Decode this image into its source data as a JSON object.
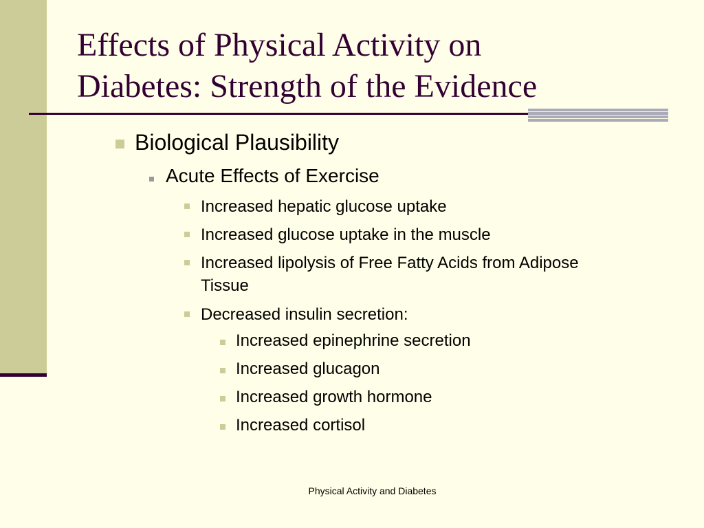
{
  "slide": {
    "title_line1": "Effects of Physical Activity on",
    "title_line2": "Diabetes: Strength of the Evidence",
    "bullets": {
      "l1": "Biological Plausibility",
      "l2": "Acute Effects of Exercise",
      "l3": [
        "Increased hepatic glucose uptake",
        "Increased glucose uptake in the muscle",
        "Increased lipolysis of Free Fatty Acids from Adipose",
        "Tissue",
        "Decreased insulin secretion:"
      ],
      "l4": [
        "Increased epinephrine secretion",
        "Increased glucagon",
        "Increased growth hormone",
        "Increased cortisol"
      ]
    },
    "footer": "Physical Activity and Diabetes"
  },
  "colors": {
    "background": "#fffee8",
    "accent_band": "#cccc99",
    "title_color": "#330033",
    "rule_color": "#330033"
  }
}
